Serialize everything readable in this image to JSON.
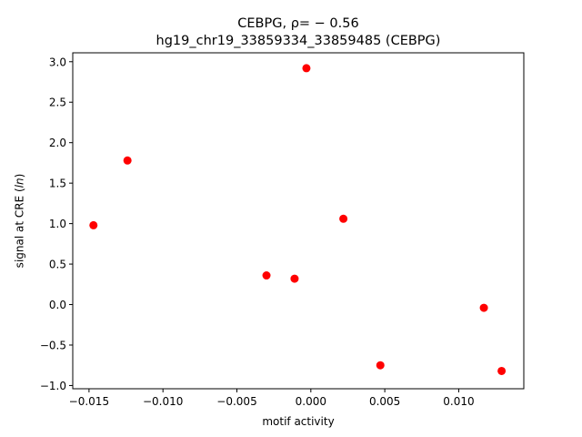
{
  "chart_data": {
    "type": "scatter",
    "title_line1": "CEBPG, ρ= − 0.56",
    "title_line2": "hg19_chr19_33859334_33859485 (CEBPG)",
    "xlabel": "motif activity",
    "ylabel": "signal at CRE (",
    "ylabel_italic": "ln",
    "ylabel_suffix": ")",
    "xlim": [
      -0.0161,
      0.0144
    ],
    "ylim": [
      -1.04,
      3.11
    ],
    "grid": false,
    "marker_color": "#ff0000",
    "x_ticks": [
      -0.015,
      -0.01,
      -0.005,
      0.0,
      0.005,
      0.01
    ],
    "x_tick_labels": [
      "−0.015",
      "−0.010",
      "−0.005",
      "0.000",
      "0.005",
      "0.010"
    ],
    "y_ticks": [
      -1.0,
      -0.5,
      0.0,
      0.5,
      1.0,
      1.5,
      2.0,
      2.5,
      3.0
    ],
    "y_tick_labels": [
      "−1.0",
      "−0.5",
      "0.0",
      "0.5",
      "1.0",
      "1.5",
      "2.0",
      "2.5",
      "3.0"
    ],
    "points": [
      {
        "x": -0.0147,
        "y": 0.98
      },
      {
        "x": -0.0124,
        "y": 1.78
      },
      {
        "x": -0.0003,
        "y": 2.92
      },
      {
        "x": -0.003,
        "y": 0.36
      },
      {
        "x": -0.0011,
        "y": 0.32
      },
      {
        "x": 0.0022,
        "y": 1.06
      },
      {
        "x": 0.0047,
        "y": -0.75
      },
      {
        "x": 0.0117,
        "y": -0.04
      },
      {
        "x": 0.0129,
        "y": -0.82
      }
    ]
  }
}
